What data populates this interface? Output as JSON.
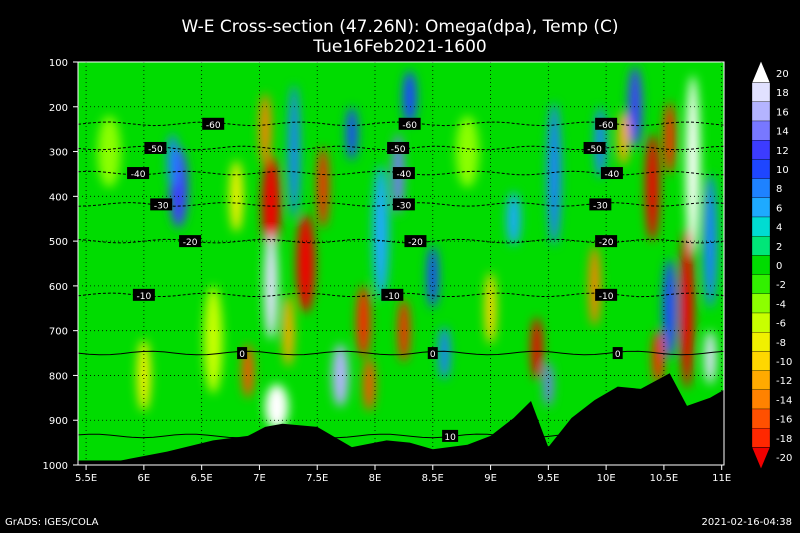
{
  "chart_data": {
    "type": "heatmap",
    "title": "W-E Cross-section (47.26N): Omega(dpa), Temp (C)",
    "subtitle": "Tue16Feb2021-1600",
    "xlabel": "",
    "ylabel": "",
    "x_ticks": [
      "5.5E",
      "6E",
      "6.5E",
      "7E",
      "7.5E",
      "8E",
      "8.5E",
      "9E",
      "9.5E",
      "10E",
      "10.5E",
      "11E"
    ],
    "x_range": [
      5.43,
      11.02
    ],
    "y_ticks": [
      "100",
      "200",
      "300",
      "400",
      "500",
      "600",
      "700",
      "800",
      "900",
      "1000"
    ],
    "y_range": [
      1000,
      100
    ],
    "colorbar": {
      "labels": [
        "20",
        "18",
        "16",
        "14",
        "12",
        "10",
        "8",
        "6",
        "4",
        "2",
        "0",
        "-2",
        "-4",
        "-6",
        "-8",
        "-10",
        "-12",
        "-14",
        "-16",
        "-18",
        "-20"
      ],
      "colors": [
        "#ffffff",
        "#e1e1ff",
        "#b4b4ff",
        "#7878ff",
        "#3c3cff",
        "#1e46ff",
        "#1e82ff",
        "#1eaaff",
        "#00dcd2",
        "#00e678",
        "#00dc00",
        "#32f000",
        "#8cff00",
        "#c8ff00",
        "#f0f000",
        "#ffd700",
        "#ffaa00",
        "#ff8200",
        "#ff5000",
        "#ff2800",
        "#f00000"
      ]
    },
    "temperature_contours": [
      {
        "label": "-60",
        "level": -60,
        "pressure": 238,
        "label_x": [
          6.6,
          8.3,
          10.0
        ]
      },
      {
        "label": "-50",
        "level": -50,
        "pressure": 292,
        "label_x": [
          6.1,
          8.2,
          9.9
        ]
      },
      {
        "label": "-40",
        "level": -40,
        "pressure": 348,
        "label_x": [
          5.95,
          8.25,
          10.05
        ]
      },
      {
        "label": "-30",
        "level": -30,
        "pressure": 418,
        "label_x": [
          6.15,
          8.25,
          9.95
        ]
      },
      {
        "label": "-20",
        "level": -20,
        "pressure": 500,
        "label_x": [
          6.4,
          8.35,
          10.0
        ]
      },
      {
        "label": "-10",
        "level": -10,
        "pressure": 620,
        "label_x": [
          6.0,
          8.15,
          10.0
        ]
      },
      {
        "label": "0",
        "level": 0,
        "pressure": 750,
        "label_x": [
          6.85,
          8.5,
          10.1
        ]
      },
      {
        "label": "10",
        "level": 10,
        "pressure": 935,
        "label_x": [
          8.65
        ]
      }
    ],
    "terrain": [
      [
        5.43,
        990
      ],
      [
        5.8,
        990
      ],
      [
        6.2,
        970
      ],
      [
        6.6,
        945
      ],
      [
        6.9,
        935
      ],
      [
        7.05,
        915
      ],
      [
        7.2,
        908
      ],
      [
        7.5,
        915
      ],
      [
        7.8,
        960
      ],
      [
        8.1,
        945
      ],
      [
        8.3,
        950
      ],
      [
        8.5,
        965
      ],
      [
        8.8,
        955
      ],
      [
        9.0,
        935
      ],
      [
        9.2,
        895
      ],
      [
        9.35,
        857
      ],
      [
        9.5,
        960
      ],
      [
        9.7,
        895
      ],
      [
        9.9,
        855
      ],
      [
        10.1,
        825
      ],
      [
        10.3,
        830
      ],
      [
        10.55,
        795
      ],
      [
        10.7,
        868
      ],
      [
        10.9,
        850
      ],
      [
        11.02,
        832
      ]
    ],
    "grid": true
  },
  "footer": {
    "left": "GrADS: IGES/COLA",
    "right": "2021-02-16-04:38"
  }
}
